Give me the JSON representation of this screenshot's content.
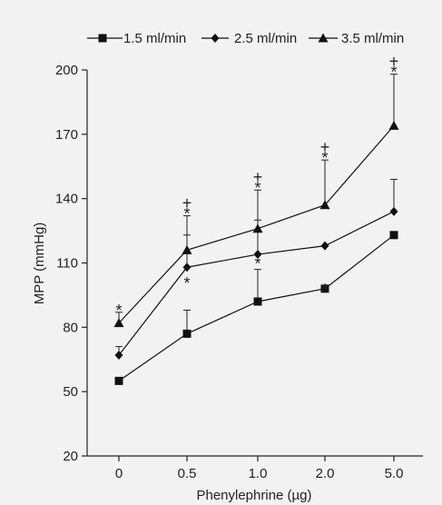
{
  "chart_data": {
    "type": "line",
    "title": "",
    "xlabel": "Phenylephrine (µg)",
    "ylabel": "MPP (mmHg)",
    "categories": [
      "0",
      "0.5",
      "1.0",
      "2.0",
      "5.0"
    ],
    "yticks": [
      20,
      50,
      80,
      110,
      140,
      170,
      200
    ],
    "ylim": [
      20,
      200
    ],
    "grid": false,
    "legend_position": "top",
    "series": [
      {
        "name": "1.5 ml/min",
        "marker": "square",
        "values": [
          55,
          77,
          92,
          98,
          123
        ],
        "error_upper": [
          null,
          88,
          107,
          null,
          null
        ],
        "annotations": [
          "",
          "",
          "*",
          "*",
          ""
        ]
      },
      {
        "name": "2.5 ml/min",
        "marker": "diamond",
        "values": [
          67,
          108,
          114,
          118,
          134
        ],
        "error_upper": [
          71,
          123,
          130,
          null,
          149
        ],
        "annotations": [
          "",
          "*",
          "",
          "",
          ""
        ]
      },
      {
        "name": "3.5 ml/min",
        "marker": "triangle",
        "values": [
          82,
          116,
          126,
          137,
          174
        ],
        "error_upper": [
          87,
          132,
          144,
          158,
          198
        ],
        "annotations": [
          "*",
          "+ *",
          "+ *",
          "+ *",
          "+ *"
        ]
      }
    ]
  }
}
